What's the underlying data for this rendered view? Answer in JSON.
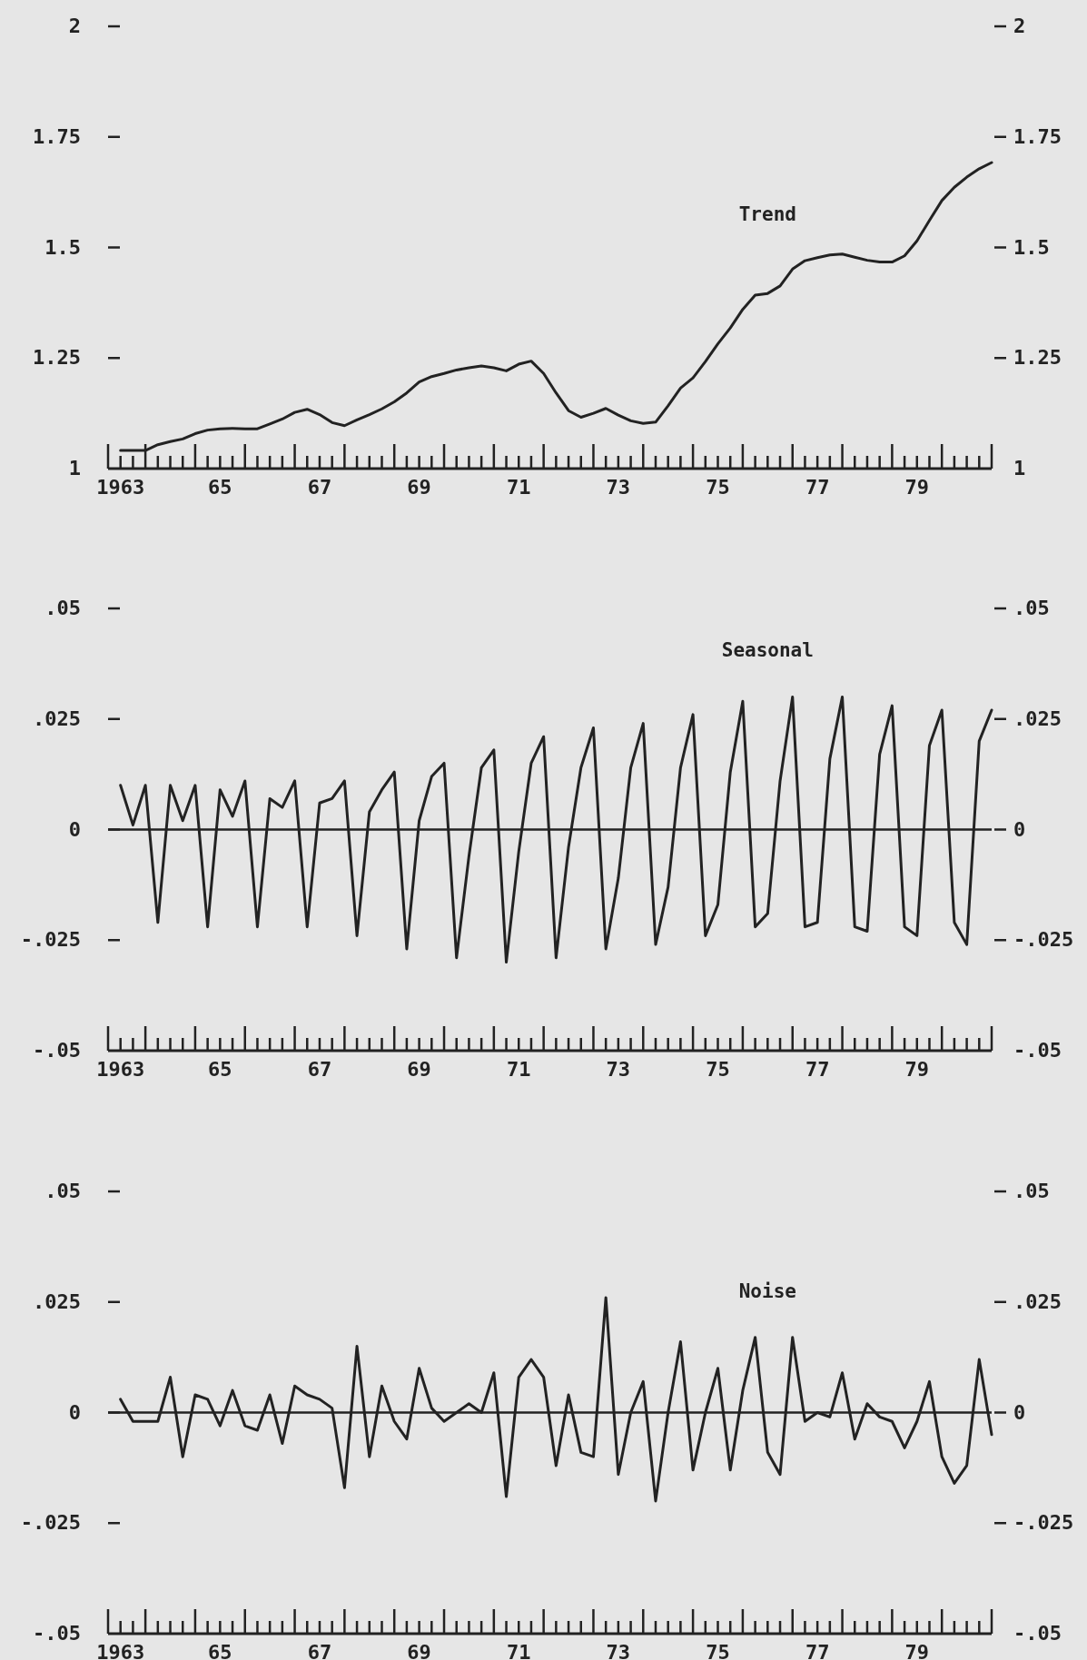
{
  "chart_data": [
    {
      "type": "line",
      "categories": [
        "1963",
        null,
        null,
        null,
        null,
        null,
        null,
        null,
        "65",
        null,
        null,
        null,
        null,
        null,
        null,
        null,
        "67",
        null,
        null,
        null,
        null,
        null,
        null,
        null,
        "69",
        null,
        null,
        null,
        null,
        null,
        null,
        null,
        "71",
        null,
        null,
        null,
        null,
        null,
        null,
        null,
        "73",
        null,
        null,
        null,
        null,
        null,
        null,
        null,
        "75",
        null,
        null,
        null,
        null,
        null,
        null,
        null,
        "77",
        null,
        null,
        null,
        null,
        null,
        null,
        null,
        "79",
        null,
        null,
        null,
        null,
        null,
        null
      ],
      "series": [
        {
          "name": "Trend",
          "color": "#222222",
          "values": [
            1.041,
            1.041,
            1.041,
            1.054,
            1.061,
            1.067,
            1.079,
            1.087,
            1.09,
            1.091,
            1.09,
            1.09,
            1.101,
            1.112,
            1.127,
            1.134,
            1.122,
            1.104,
            1.097,
            1.11,
            1.122,
            1.135,
            1.151,
            1.171,
            1.196,
            1.208,
            1.215,
            1.223,
            1.228,
            1.232,
            1.228,
            1.221,
            1.236,
            1.243,
            1.215,
            1.171,
            1.131,
            1.116,
            1.125,
            1.136,
            1.121,
            1.108,
            1.102,
            1.105,
            1.142,
            1.182,
            1.205,
            1.242,
            1.282,
            1.318,
            1.36,
            1.392,
            1.396,
            1.413,
            1.451,
            1.47,
            1.477,
            1.483,
            1.485,
            1.478,
            1.471,
            1.467,
            1.467,
            1.481,
            1.515,
            1.561,
            1.606,
            1.636,
            1.659,
            1.678,
            1.692
          ]
        }
      ],
      "ylim": [
        1,
        2
      ],
      "yticks": [
        1,
        1.25,
        1.5,
        1.75,
        2
      ],
      "y2lim": [
        1,
        2
      ],
      "y2ticks": [
        1,
        1.25,
        1.5,
        1.75,
        2
      ]
    },
    {
      "type": "line",
      "categories": [
        "1963",
        null,
        null,
        null,
        null,
        null,
        null,
        null,
        "65",
        null,
        null,
        null,
        null,
        null,
        null,
        null,
        "67",
        null,
        null,
        null,
        null,
        null,
        null,
        null,
        "69",
        null,
        null,
        null,
        null,
        null,
        null,
        null,
        "71",
        null,
        null,
        null,
        null,
        null,
        null,
        null,
        "73",
        null,
        null,
        null,
        null,
        null,
        null,
        null,
        "75",
        null,
        null,
        null,
        null,
        null,
        null,
        null,
        "77",
        null,
        null,
        null,
        null,
        null,
        null,
        null,
        "79",
        null,
        null,
        null,
        null,
        null,
        null
      ],
      "series": [
        {
          "name": "Seasonal",
          "color": "#222222",
          "values": [
            0.01,
            0.001,
            0.01,
            -0.021,
            0.01,
            0.002,
            0.01,
            -0.022,
            0.009,
            0.003,
            0.011,
            -0.022,
            0.007,
            0.005,
            0.011,
            -0.022,
            0.006,
            0.007,
            0.011,
            -0.024,
            0.004,
            0.009,
            0.013,
            -0.027,
            0.002,
            0.012,
            0.015,
            -0.029,
            -0.006,
            0.014,
            0.018,
            -0.03,
            -0.005,
            0.015,
            0.021,
            -0.029,
            -0.004,
            0.014,
            0.023,
            -0.027,
            -0.011,
            0.014,
            0.024,
            -0.026,
            -0.013,
            0.014,
            0.026,
            -0.024,
            -0.017,
            0.013,
            0.029,
            -0.022,
            -0.019,
            0.011,
            0.03,
            -0.022,
            -0.021,
            0.016,
            0.03,
            -0.022,
            -0.023,
            0.017,
            0.028,
            -0.022,
            -0.024,
            0.019,
            0.027,
            -0.021,
            -0.026,
            0.02,
            0.027
          ]
        }
      ],
      "ylim": [
        -0.05,
        0.05
      ],
      "yticks": [
        {
          "value": -0.05,
          "label": "-.05"
        },
        {
          "value": -0.025,
          "label": "-.025"
        },
        0,
        {
          "value": 0.025,
          "label": ".025"
        },
        {
          "value": 0.05,
          "label": ".05"
        }
      ],
      "y2lim": [
        -0.05,
        0.05
      ],
      "y2ticks": [
        {
          "value": -0.05,
          "label": "-.05"
        },
        {
          "value": -0.025,
          "label": "-.025"
        },
        0,
        {
          "value": 0.025,
          "label": ".025"
        },
        {
          "value": 0.05,
          "label": ".05"
        }
      ],
      "ref_lines": [
        {
          "axis": "y",
          "value": 0
        }
      ]
    },
    {
      "type": "line",
      "categories": [
        "1963",
        null,
        null,
        null,
        null,
        null,
        null,
        null,
        "65",
        null,
        null,
        null,
        null,
        null,
        null,
        null,
        "67",
        null,
        null,
        null,
        null,
        null,
        null,
        null,
        "69",
        null,
        null,
        null,
        null,
        null,
        null,
        null,
        "71",
        null,
        null,
        null,
        null,
        null,
        null,
        null,
        "73",
        null,
        null,
        null,
        null,
        null,
        null,
        null,
        "75",
        null,
        null,
        null,
        null,
        null,
        null,
        null,
        "77",
        null,
        null,
        null,
        null,
        null,
        null,
        null,
        "79",
        null,
        null,
        null,
        null,
        null,
        null
      ],
      "series": [
        {
          "name": "Noise",
          "color": "#222222",
          "values": [
            0.003,
            -0.002,
            -0.002,
            -0.002,
            0.008,
            -0.01,
            0.004,
            0.003,
            -0.003,
            0.005,
            -0.003,
            -0.004,
            0.004,
            -0.007,
            0.006,
            0.004,
            0.003,
            0.001,
            -0.017,
            0.015,
            -0.01,
            0.006,
            -0.002,
            -0.006,
            0.01,
            0.001,
            -0.002,
            0,
            0.002,
            0,
            0.009,
            -0.019,
            0.008,
            0.012,
            0.008,
            -0.012,
            0.004,
            -0.009,
            -0.01,
            0.026,
            -0.014,
            0,
            0.007,
            -0.02,
            0,
            0.016,
            -0.013,
            0,
            0.01,
            -0.013,
            0.005,
            0.017,
            -0.009,
            -0.014,
            0.017,
            -0.002,
            0,
            -0.001,
            0.009,
            -0.006,
            0.002,
            -0.001,
            -0.002,
            -0.008,
            -0.002,
            0.007,
            -0.01,
            -0.016,
            -0.012,
            0.012,
            -0.005
          ]
        }
      ],
      "ylim": [
        -0.05,
        0.05
      ],
      "yticks": [
        {
          "value": -0.05,
          "label": "-.05"
        },
        {
          "value": -0.025,
          "label": "-.025"
        },
        0,
        {
          "value": 0.025,
          "label": ".025"
        },
        {
          "value": 0.05,
          "label": ".05"
        }
      ],
      "y2lim": [
        -0.05,
        0.05
      ],
      "y2ticks": [
        {
          "value": -0.05,
          "label": "-.05"
        },
        {
          "value": -0.025,
          "label": "-.025"
        },
        0,
        {
          "value": 0.025,
          "label": ".025"
        },
        {
          "value": 0.05,
          "label": ".05"
        }
      ],
      "ref_lines": [
        {
          "axis": "y",
          "value": 0
        }
      ]
    }
  ]
}
